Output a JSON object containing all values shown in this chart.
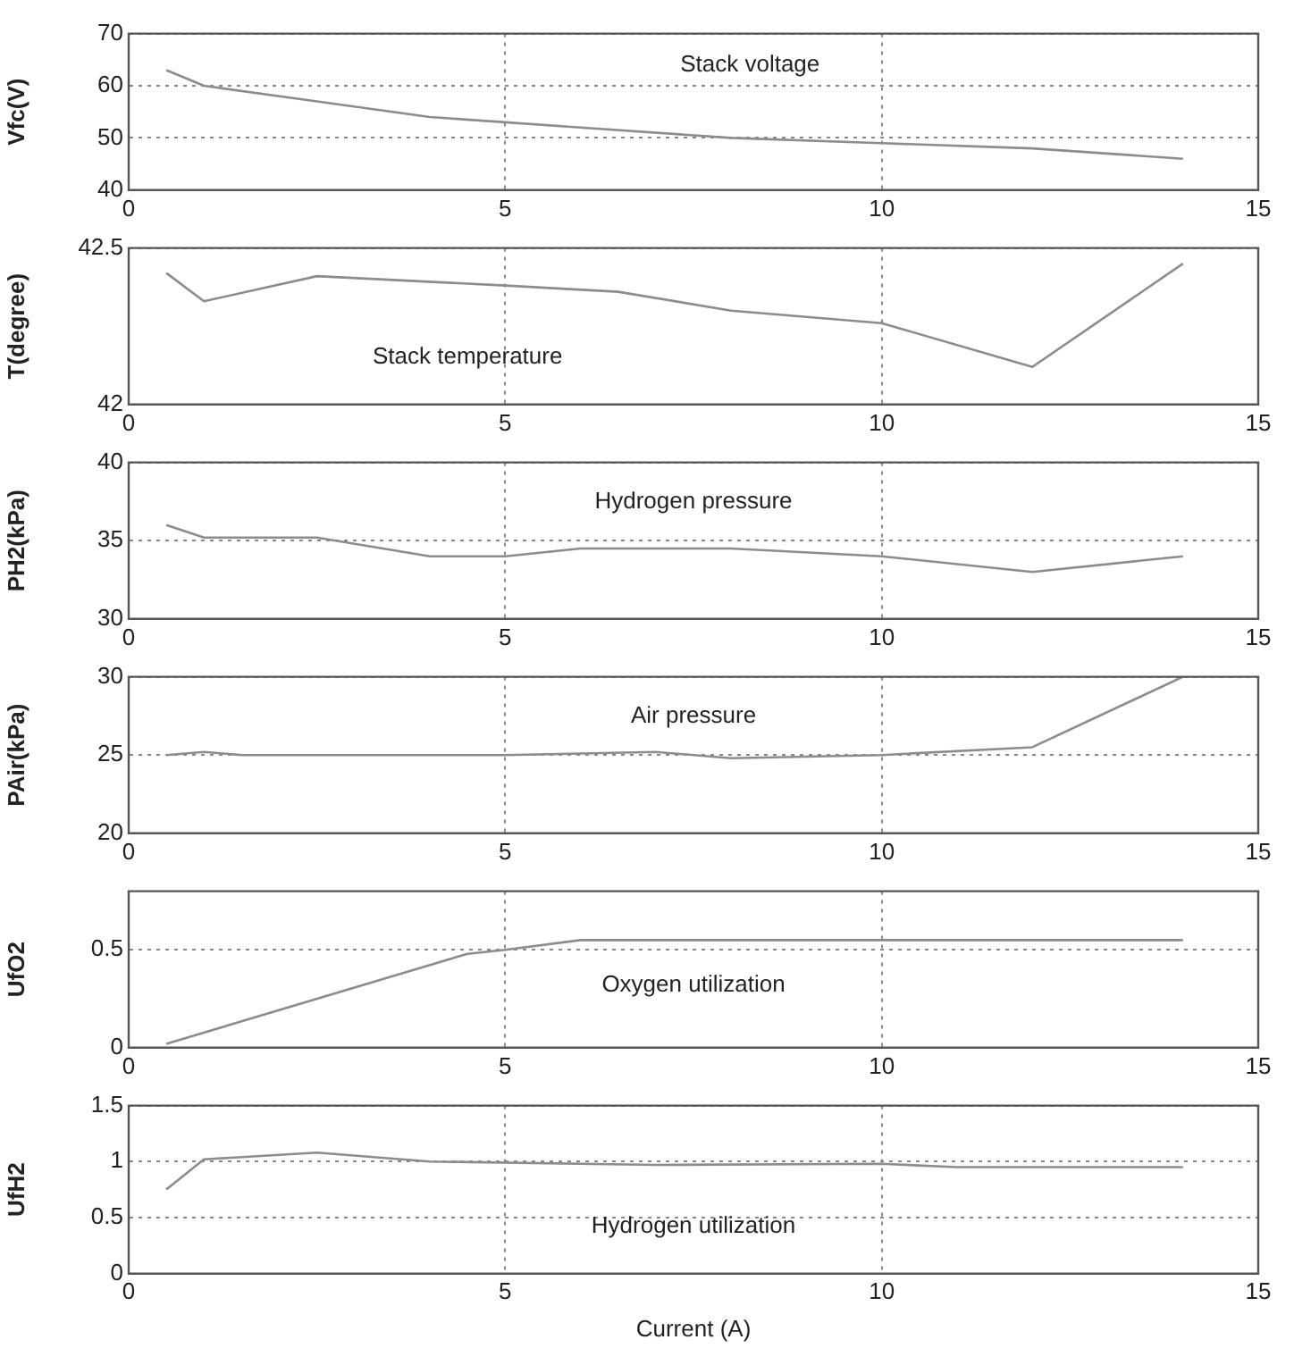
{
  "chart_data": [
    {
      "type": "line",
      "ylabel": "Vfc(V)",
      "annotations": [
        "Stack voltage"
      ],
      "x": [
        0.5,
        1,
        2.5,
        4,
        5,
        6,
        8,
        10,
        12,
        14
      ],
      "series": [
        {
          "color": "#8c8c8c",
          "values": [
            63,
            60,
            57,
            54,
            53,
            52,
            50,
            49,
            48,
            46
          ]
        }
      ],
      "xlim": [
        0,
        15
      ],
      "xticks": [
        0,
        5,
        10,
        15
      ],
      "ylim": [
        40,
        70
      ],
      "yticks": [
        40,
        50,
        60,
        70
      ],
      "grid": true,
      "legend": false,
      "marker": "none",
      "line_style": "solid"
    },
    {
      "type": "line",
      "ylabel": "T(degree)",
      "annotations": [
        "Stack temperature"
      ],
      "x": [
        0.5,
        1,
        2.5,
        5,
        6.5,
        8,
        10,
        12,
        14
      ],
      "series": [
        {
          "color": "#8c8c8c",
          "values": [
            42.42,
            42.33,
            42.41,
            42.38,
            42.36,
            42.3,
            42.26,
            42.12,
            42.45
          ]
        }
      ],
      "xlim": [
        0,
        15
      ],
      "xticks": [
        0,
        5,
        10,
        15
      ],
      "ylim": [
        42,
        42.5
      ],
      "yticks": [
        42,
        42.5
      ],
      "grid": true,
      "legend": false,
      "marker": "none",
      "line_style": "solid"
    },
    {
      "type": "line",
      "ylabel": "PH2(kPa)",
      "annotations": [
        "Hydrogen pressure"
      ],
      "x": [
        0.5,
        1,
        2.5,
        4,
        5,
        6,
        8,
        10,
        12,
        14
      ],
      "series": [
        {
          "color": "#8c8c8c",
          "values": [
            36,
            35.2,
            35.2,
            34,
            34,
            34.5,
            34.5,
            34,
            33,
            34
          ]
        }
      ],
      "xlim": [
        0,
        15
      ],
      "xticks": [
        0,
        5,
        10,
        15
      ],
      "ylim": [
        30,
        40
      ],
      "yticks": [
        30,
        35,
        40
      ],
      "grid": true,
      "legend": false,
      "marker": "none",
      "line_style": "solid"
    },
    {
      "type": "line",
      "ylabel": "PAir(kPa)",
      "annotations": [
        "Air pressure"
      ],
      "x": [
        0.5,
        1,
        1.5,
        5,
        7,
        8,
        10,
        12,
        14
      ],
      "series": [
        {
          "color": "#8c8c8c",
          "values": [
            25,
            25.2,
            25,
            25,
            25.2,
            24.8,
            25,
            25.5,
            30
          ]
        }
      ],
      "xlim": [
        0,
        15
      ],
      "xticks": [
        0,
        5,
        10,
        15
      ],
      "ylim": [
        20,
        30
      ],
      "yticks": [
        20,
        25,
        30
      ],
      "grid": true,
      "legend": false,
      "marker": "none",
      "line_style": "solid"
    },
    {
      "type": "line",
      "ylabel": "UfO2",
      "annotations": [
        "Oxygen utilization"
      ],
      "x": [
        0.5,
        4.5,
        5,
        6,
        10,
        14
      ],
      "series": [
        {
          "color": "#8c8c8c",
          "values": [
            0.02,
            0.48,
            0.5,
            0.55,
            0.55,
            0.55
          ]
        }
      ],
      "xlim": [
        0,
        15
      ],
      "xticks": [
        0,
        5,
        10,
        15
      ],
      "ylim": [
        0,
        0.8
      ],
      "yticks": [
        0,
        0.5
      ],
      "grid": true,
      "legend": false,
      "marker": "none",
      "line_style": "solid"
    },
    {
      "type": "line",
      "ylabel": "UfH2",
      "xlabel": "Current (A)",
      "annotations": [
        "Hydrogen utilization"
      ],
      "x": [
        0.5,
        1,
        2.5,
        4,
        7,
        10,
        11,
        14
      ],
      "series": [
        {
          "color": "#8c8c8c",
          "values": [
            0.75,
            1.02,
            1.08,
            1,
            0.97,
            0.98,
            0.95,
            0.95
          ]
        }
      ],
      "xlim": [
        0,
        15
      ],
      "xticks": [
        0,
        5,
        10,
        15
      ],
      "ylim": [
        0,
        1.5
      ],
      "yticks": [
        0,
        0.5,
        1,
        1.5
      ],
      "grid": true,
      "legend": false,
      "marker": "none",
      "line_style": "solid"
    }
  ]
}
